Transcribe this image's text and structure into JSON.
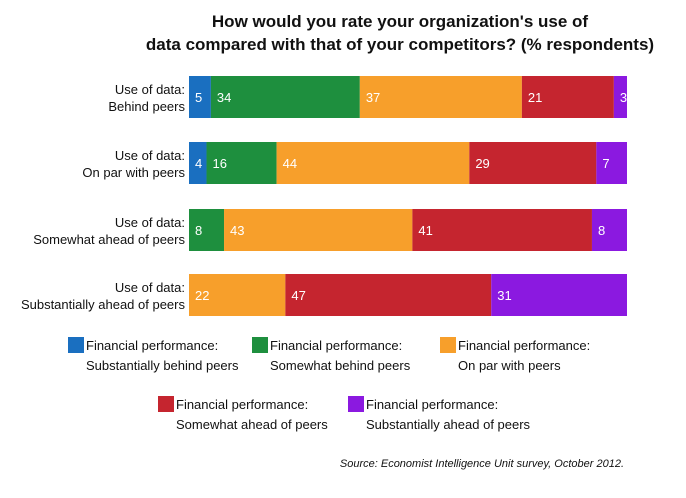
{
  "chart_data": {
    "type": "bar",
    "orientation": "horizontal-stacked",
    "title_line1": "How would you rate your organization's use of",
    "title_line2": "data compared with that of your competitors? (% respondents)",
    "categories": [
      [
        "Use of data:",
        "Behind peers"
      ],
      [
        "Use of data:",
        "On par with peers"
      ],
      [
        "Use of data:",
        "Somewhat ahead of peers"
      ],
      [
        "Use of data:",
        "Substantially ahead of peers"
      ]
    ],
    "series": [
      {
        "name": [
          "Financial performance:",
          "Substantially behind peers"
        ],
        "color": "#1a6fc0",
        "values": [
          5,
          4,
          0,
          0
        ]
      },
      {
        "name": [
          "Financial performance:",
          "Somewhat behind peers"
        ],
        "color": "#1e8f3e",
        "values": [
          34,
          16,
          8,
          0
        ]
      },
      {
        "name": [
          "Financial performance:",
          "On par with peers"
        ],
        "color": "#f79f2b",
        "values": [
          37,
          44,
          43,
          22
        ]
      },
      {
        "name": [
          "Financial performance:",
          "Somewhat ahead of peers"
        ],
        "color": "#c5252f",
        "values": [
          21,
          29,
          41,
          47
        ]
      },
      {
        "name": [
          "Financial performance:",
          "Substantially ahead of peers"
        ],
        "color": "#8b19e0",
        "values": [
          3,
          7,
          8,
          31
        ]
      }
    ],
    "xlim": [
      0,
      100
    ],
    "legend_position": "bottom",
    "source": "Source: Economist Intelligence Unit survey, October 2012."
  }
}
